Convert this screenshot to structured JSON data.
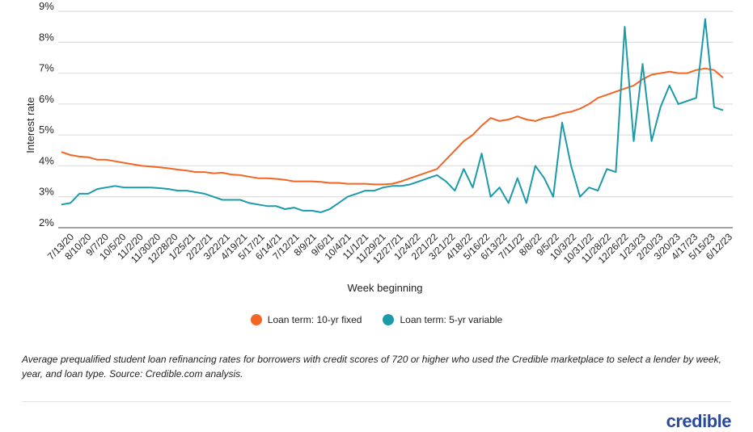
{
  "chart_data": {
    "type": "line",
    "ylabel": "Interest rate",
    "xlabel": "Week beginning",
    "ylim": [
      2,
      9
    ],
    "y_ticks": [
      "2%",
      "3%",
      "4%",
      "5%",
      "6%",
      "7%",
      "8%",
      "9%"
    ],
    "x_tick_labels": [
      "7/13/20",
      "8/10/20",
      "9/7/20",
      "10/5/20",
      "11/2/20",
      "11/30/20",
      "12/28/20",
      "1/25/21",
      "2/22/21",
      "3/22/21",
      "4/19/21",
      "5/17/21",
      "6/14/21",
      "7/12/21",
      "8/9/21",
      "9/6/21",
      "10/4/21",
      "11/1/21",
      "11/29/21",
      "12/27/21",
      "1/24/22",
      "2/21/22",
      "3/21/22",
      "4/18/22",
      "5/16/22",
      "6/13/22",
      "7/11/22",
      "8/8/22",
      "9/5/22",
      "10/3/22",
      "10/31/22",
      "11/28/22",
      "12/26/22",
      "1/23/23",
      "2/20/23",
      "3/20/23",
      "4/17/23",
      "5/15/23",
      "6/12/23"
    ],
    "grid": "horizontal",
    "legend_position": "bottom",
    "series": [
      {
        "name": "Loan term: 10-yr fixed",
        "color": "#f26522",
        "values": [
          4.45,
          4.35,
          4.3,
          4.28,
          4.2,
          4.2,
          4.15,
          4.1,
          4.05,
          4.0,
          3.98,
          3.95,
          3.92,
          3.88,
          3.85,
          3.8,
          3.8,
          3.76,
          3.78,
          3.72,
          3.7,
          3.65,
          3.6,
          3.6,
          3.58,
          3.55,
          3.5,
          3.5,
          3.5,
          3.48,
          3.45,
          3.45,
          3.42,
          3.42,
          3.42,
          3.4,
          3.4,
          3.42,
          3.5,
          3.6,
          3.7,
          3.8,
          3.9,
          4.2,
          4.5,
          4.8,
          5.0,
          5.3,
          5.55,
          5.45,
          5.5,
          5.6,
          5.5,
          5.45,
          5.55,
          5.6,
          5.7,
          5.75,
          5.85,
          6.0,
          6.2,
          6.3,
          6.4,
          6.5,
          6.6,
          6.8,
          6.95,
          7.0,
          7.05,
          7.0,
          7.0,
          7.1,
          7.15,
          7.1,
          6.85
        ]
      },
      {
        "name": "Loan term: 5-yr variable",
        "color": "#1b9aaa",
        "values": [
          2.75,
          2.8,
          3.1,
          3.1,
          3.25,
          3.3,
          3.35,
          3.3,
          3.3,
          3.3,
          3.3,
          3.28,
          3.25,
          3.2,
          3.2,
          3.15,
          3.1,
          3.0,
          2.9,
          2.9,
          2.9,
          2.8,
          2.75,
          2.7,
          2.7,
          2.6,
          2.65,
          2.55,
          2.55,
          2.5,
          2.6,
          2.8,
          3.0,
          3.1,
          3.2,
          3.2,
          3.3,
          3.35,
          3.35,
          3.4,
          3.5,
          3.6,
          3.7,
          3.5,
          3.2,
          3.9,
          3.3,
          4.4,
          3.0,
          3.3,
          2.8,
          3.6,
          2.8,
          4.0,
          3.6,
          3.0,
          5.4,
          4.0,
          3.0,
          3.3,
          3.2,
          3.9,
          3.8,
          8.5,
          4.8,
          7.3,
          4.8,
          5.9,
          6.6,
          6.0,
          6.1,
          6.2,
          8.75,
          5.9,
          5.8
        ]
      }
    ]
  },
  "legend": {
    "items": [
      {
        "label": "Loan term: 10-yr fixed",
        "color": "#f26522"
      },
      {
        "label": "Loan term: 5-yr variable",
        "color": "#1b9aaa"
      }
    ]
  },
  "caption": "Average prequalified student loan refinancing rates for borrowers with credit scores of 720 or higher who used the Credible marketplace to select a lender by week, year, and loan type. Source: Credible.com analysis.",
  "logo_text": "credible"
}
